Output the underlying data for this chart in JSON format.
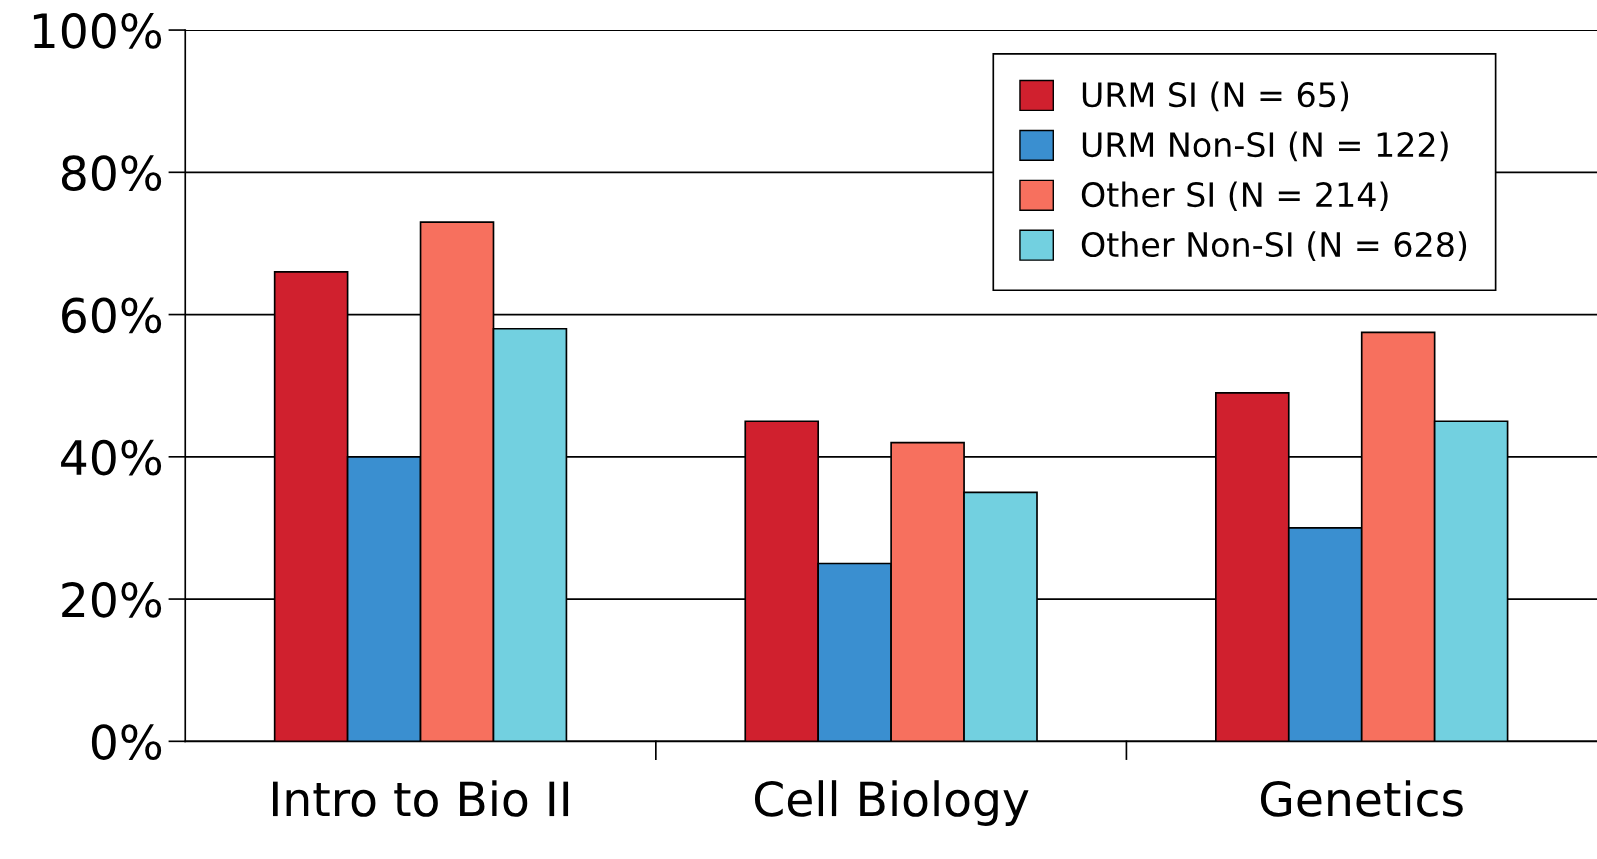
{
  "chart_data": {
    "type": "bar",
    "categories": [
      "Intro to Bio II",
      "Cell Biology",
      "Genetics"
    ],
    "series": [
      {
        "name": "URM SI (N = 65)",
        "color": "#d0202e",
        "values": [
          66,
          45,
          49
        ]
      },
      {
        "name": "URM Non-SI (N = 122)",
        "color": "#3a8fd0",
        "values": [
          40,
          25,
          30
        ]
      },
      {
        "name": "Other SI (N = 214)",
        "color": "#f7705e",
        "values": [
          73,
          42,
          57.5
        ]
      },
      {
        "name": "Other Non-SI (N = 628)",
        "color": "#72d0e0",
        "values": [
          58,
          35,
          45
        ]
      }
    ],
    "ylim": [
      0,
      100
    ],
    "yticks": [
      {
        "value": 0,
        "label": "0%"
      },
      {
        "value": 20,
        "label": "20%"
      },
      {
        "value": 40,
        "label": "40%"
      },
      {
        "value": 60,
        "label": "60%"
      },
      {
        "value": 80,
        "label": "80%"
      },
      {
        "value": 100,
        "label": "100%"
      }
    ],
    "grid": "y",
    "legend": "top right"
  }
}
